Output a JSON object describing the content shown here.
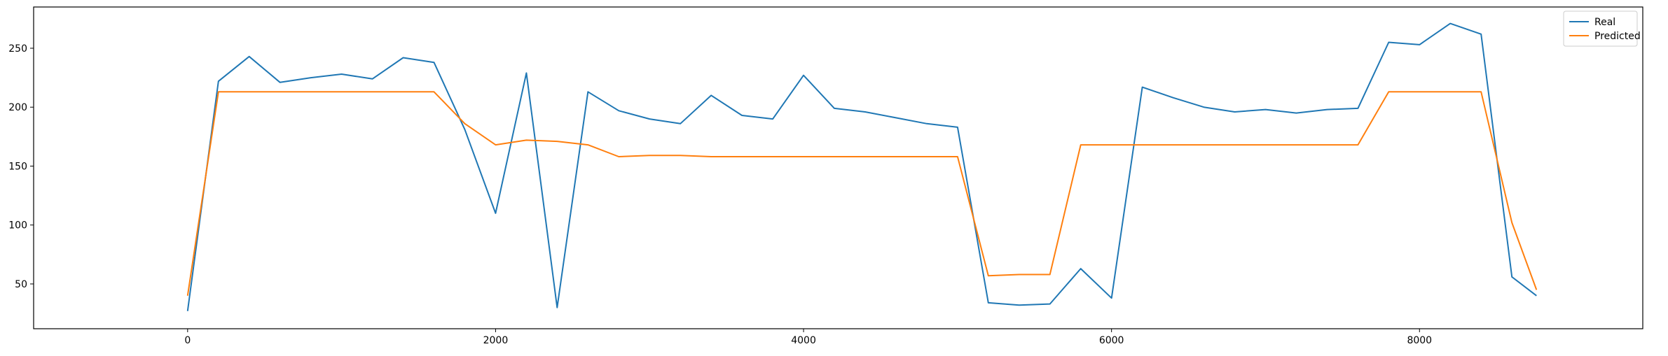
{
  "chart_data": {
    "type": "line",
    "title": "",
    "xlabel": "",
    "ylabel": "",
    "xlim": [
      -1000,
      9450
    ],
    "ylim": [
      12,
      285
    ],
    "x_ticks": [
      0,
      2000,
      4000,
      6000,
      8000
    ],
    "x_tick_labels": [
      "0",
      "2000",
      "4000",
      "6000",
      "8000"
    ],
    "y_ticks": [
      50,
      100,
      150,
      200,
      250
    ],
    "y_tick_labels": [
      "50",
      "100",
      "150",
      "200",
      "250"
    ],
    "grid": false,
    "legend_position": "top-right",
    "series": [
      {
        "name": "Real",
        "color": "#1f77b4",
        "x": [
          0,
          200,
          400,
          600,
          800,
          1000,
          1200,
          1400,
          1600,
          1800,
          2000,
          2200,
          2400,
          2600,
          2800,
          3000,
          3200,
          3400,
          3600,
          3800,
          4000,
          4200,
          4400,
          4600,
          4800,
          5000,
          5200,
          5400,
          5600,
          5800,
          6000,
          6200,
          6400,
          6600,
          6800,
          7000,
          7200,
          7400,
          7600,
          7800,
          8000,
          8200,
          8400,
          8600,
          8760
        ],
        "y": [
          27,
          222,
          243,
          221,
          225,
          228,
          224,
          242,
          238,
          181,
          110,
          229,
          30,
          213,
          197,
          190,
          186,
          210,
          193,
          190,
          227,
          199,
          196,
          191,
          186,
          183,
          34,
          32,
          33,
          63,
          38,
          217,
          208,
          200,
          196,
          198,
          195,
          198,
          199,
          255,
          253,
          271,
          262,
          56,
          40
        ]
      },
      {
        "name": "Predicted",
        "color": "#ff7f0e",
        "x": [
          0,
          200,
          400,
          600,
          800,
          1000,
          1200,
          1400,
          1600,
          1800,
          2000,
          2200,
          2400,
          2600,
          2800,
          3000,
          3200,
          3400,
          3600,
          3800,
          4000,
          4200,
          4400,
          4600,
          4800,
          5000,
          5200,
          5400,
          5600,
          5800,
          6000,
          6200,
          6400,
          6600,
          6800,
          7000,
          7200,
          7400,
          7600,
          7800,
          8000,
          8200,
          8400,
          8600,
          8760
        ],
        "y": [
          40,
          213,
          213,
          213,
          213,
          213,
          213,
          213,
          213,
          186,
          168,
          172,
          171,
          168,
          158,
          159,
          159,
          158,
          158,
          158,
          158,
          158,
          158,
          158,
          158,
          158,
          57,
          58,
          58,
          168,
          168,
          168,
          168,
          168,
          168,
          168,
          168,
          168,
          168,
          213,
          213,
          213,
          213,
          102,
          45
        ]
      }
    ]
  }
}
